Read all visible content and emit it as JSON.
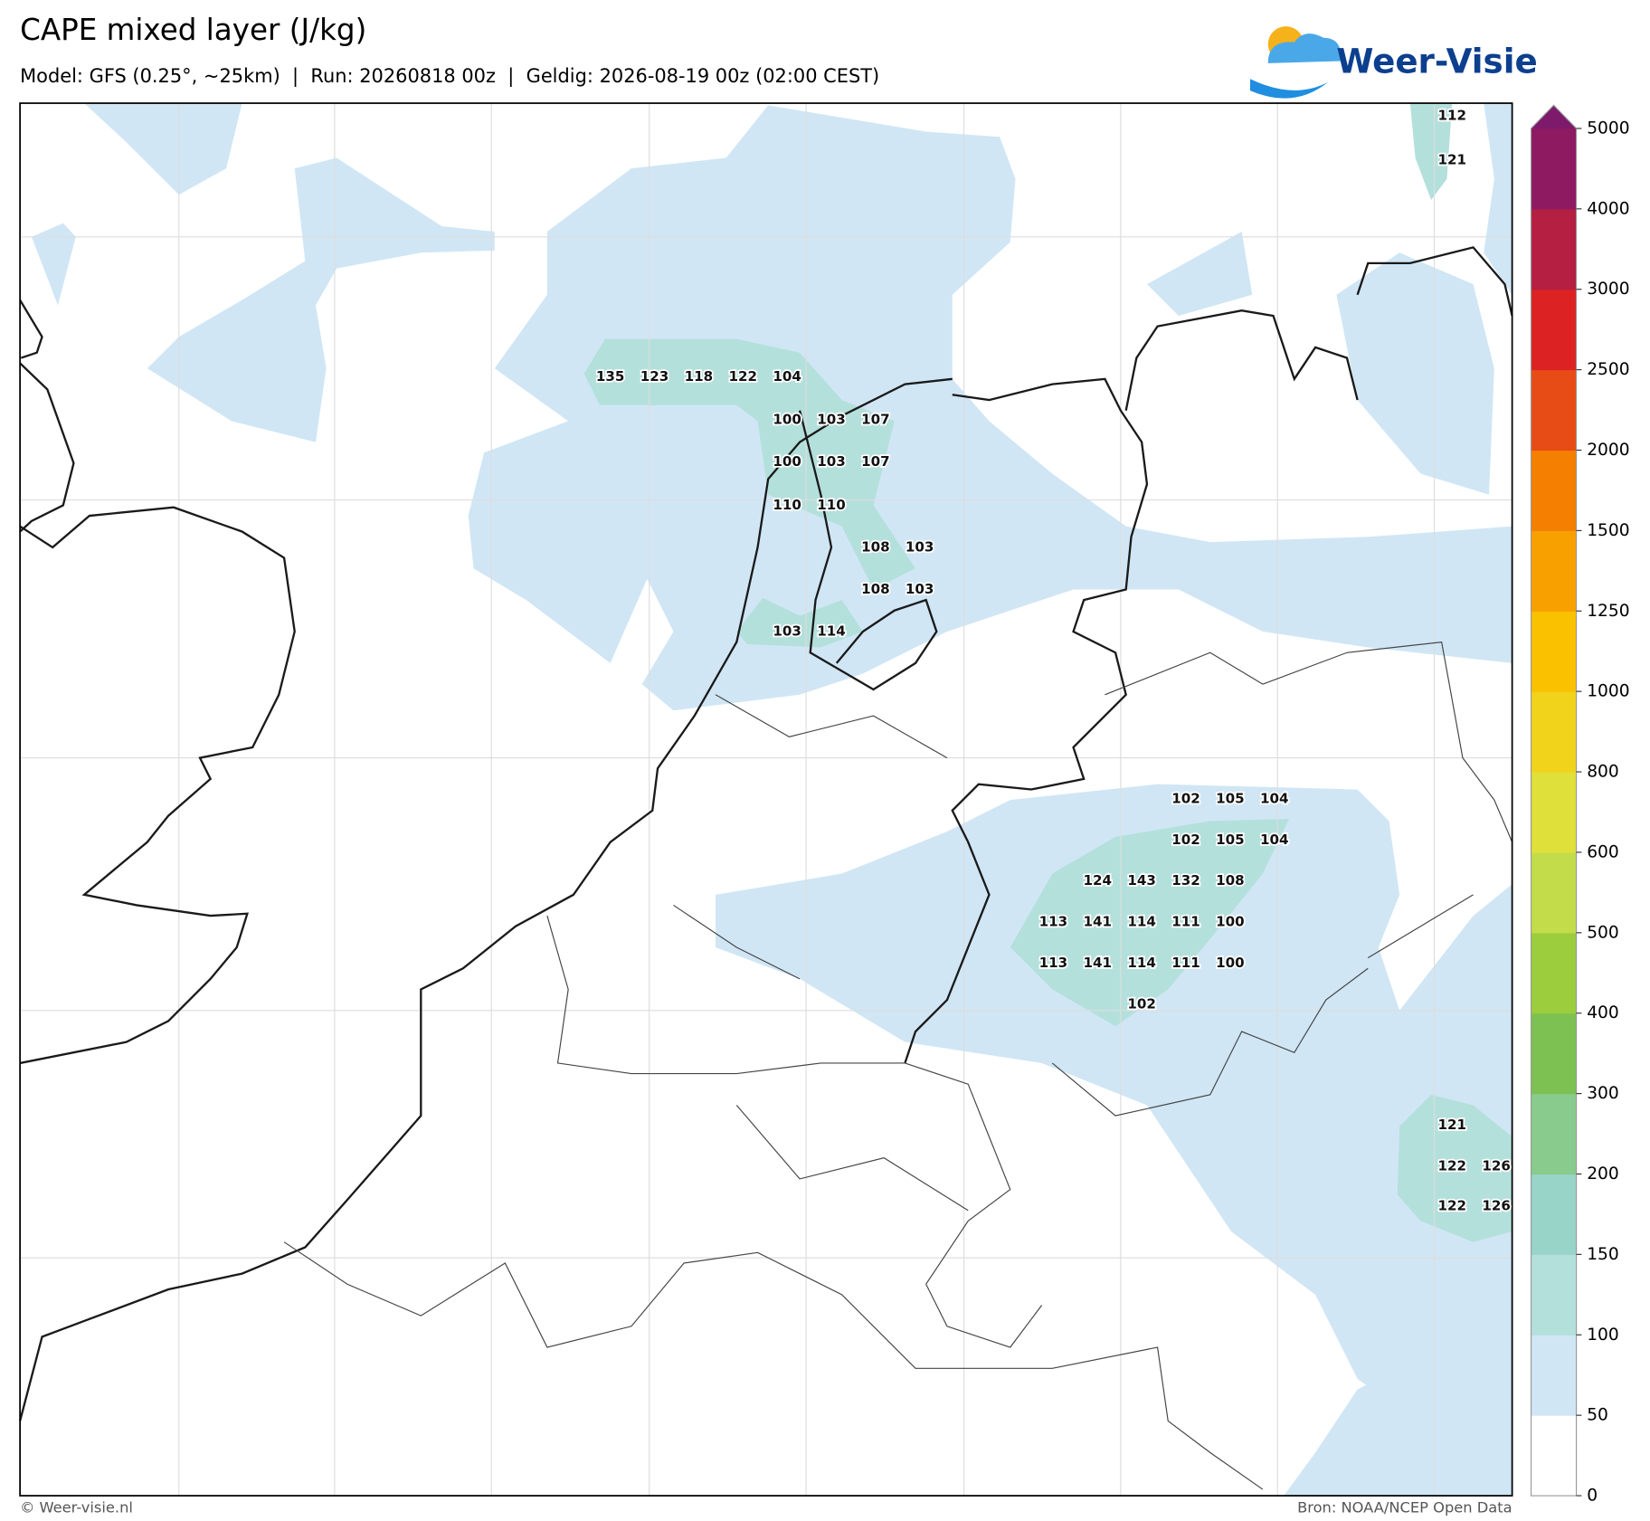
{
  "header": {
    "title": "CAPE mixed layer (J/kg)",
    "subtitle": "Model: GFS (0.25°, ~25km)  |  Run: 20260818 00z  |  Geldig: 2026-08-19 00z (02:00 CEST)",
    "logo": "Weer-Visie"
  },
  "map_labels": [
    135,
    123,
    118,
    122,
    104,
    100,
    103,
    107,
    100,
    103,
    107,
    110,
    110,
    108,
    103,
    108,
    103,
    103,
    114,
    112,
    121,
    102,
    105,
    104,
    102,
    105,
    104,
    124,
    143,
    132,
    108,
    113,
    141,
    114,
    111,
    100,
    113,
    141,
    114,
    111,
    100,
    102,
    121,
    122,
    126,
    122,
    126
  ],
  "colorbar": {
    "levels": [
      0,
      50,
      100,
      150,
      200,
      300,
      400,
      500,
      600,
      800,
      1000,
      1250,
      1500,
      2000,
      2500,
      3000,
      4000,
      5000
    ],
    "colors": [
      "#ffffff",
      "#d0e6f5",
      "#b4e0dc",
      "#98d4c8",
      "#88cb8c",
      "#7cc152",
      "#9bcd3d",
      "#c3dc4a",
      "#dfe03a",
      "#f1d31b",
      "#f9c100",
      "#f8a000",
      "#f57f00",
      "#e84c16",
      "#dc2222",
      "#b51f41",
      "#8e1a62"
    ],
    "extend_color": "#7d1a6c"
  },
  "footer": {
    "left": "© Weer-visie.nl",
    "right": "Bron: NOAA/NCEP Open Data"
  }
}
